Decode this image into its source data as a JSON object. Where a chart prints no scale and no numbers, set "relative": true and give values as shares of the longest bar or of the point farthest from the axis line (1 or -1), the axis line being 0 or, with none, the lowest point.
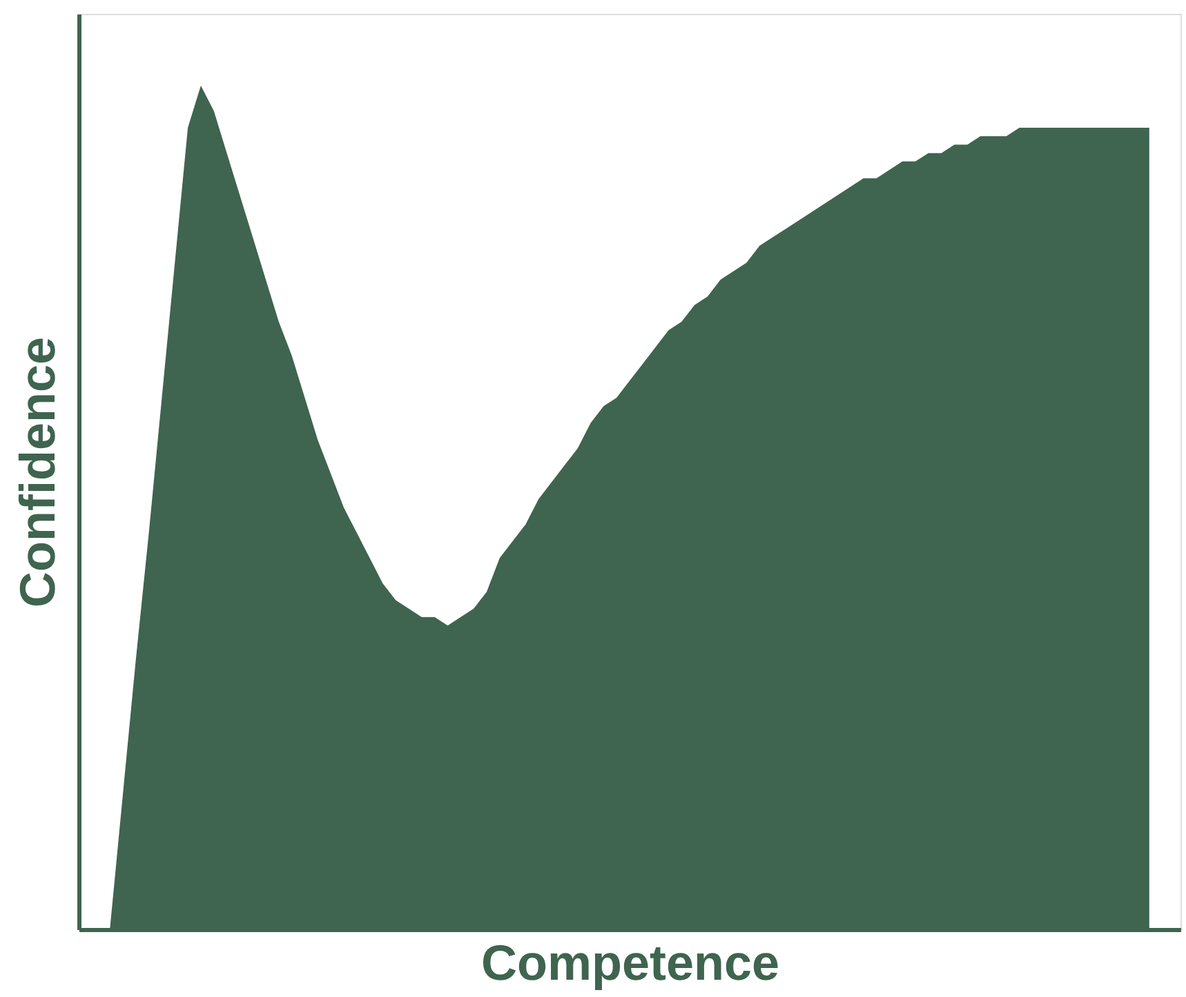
{
  "chart_data": {
    "type": "area",
    "relative": true,
    "xlabel": "Competence",
    "ylabel": "Confidence",
    "categories": [
      null,
      null,
      null,
      null,
      null,
      null,
      null,
      null,
      null,
      null,
      null,
      null,
      null,
      null,
      null,
      null,
      null,
      null,
      null,
      null,
      null,
      null,
      null,
      null,
      null,
      null,
      null,
      null,
      null,
      null,
      null,
      null,
      null,
      null,
      null,
      null,
      null,
      null,
      null,
      null,
      null,
      null,
      null,
      null,
      null,
      null,
      null,
      null,
      null,
      null,
      null,
      null,
      null,
      null,
      null,
      null,
      null,
      null,
      null,
      null,
      null,
      null,
      null,
      null,
      null,
      null,
      null,
      null,
      null,
      null,
      null,
      null,
      null,
      null,
      null,
      null,
      null,
      null,
      null,
      null,
      null
    ],
    "series": [
      {
        "color": "#3f6450",
        "values": [
          0,
          0.16,
          0.32,
          0.47,
          0.63,
          0.79,
          0.95,
          1,
          0.97,
          0.92,
          0.87,
          0.82,
          0.77,
          0.72,
          0.68,
          0.63,
          0.58,
          0.54,
          0.5,
          0.47,
          0.44,
          0.41,
          0.39,
          0.38,
          0.37,
          0.37,
          0.36,
          0.37,
          0.38,
          0.4,
          0.44,
          0.46,
          0.48,
          0.51,
          0.53,
          0.55,
          0.57,
          0.6,
          0.62,
          0.63,
          0.65,
          0.67,
          0.69,
          0.71,
          0.72,
          0.74,
          0.75,
          0.77,
          0.78,
          0.79,
          0.81,
          0.82,
          0.83,
          0.84,
          0.85,
          0.86,
          0.87,
          0.88,
          0.89,
          0.89,
          0.9,
          0.91,
          0.91,
          0.92,
          0.92,
          0.93,
          0.93,
          0.94,
          0.94,
          0.94,
          0.95,
          0.95,
          0.95,
          0.95,
          0.95,
          0.95,
          0.95,
          0.95,
          0.95,
          0.95,
          0.95
        ]
      }
    ],
    "grid": false
  }
}
